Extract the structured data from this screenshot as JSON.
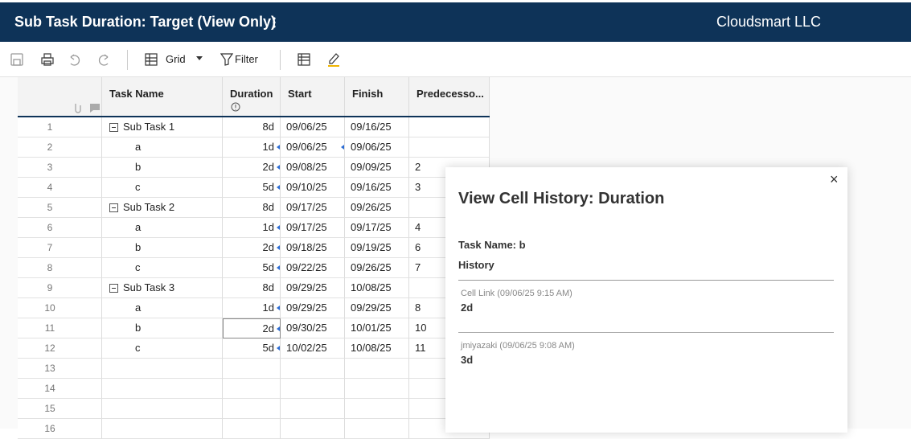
{
  "header": {
    "title": "Sub Task Duration: Target (View Only)",
    "company": "Cloudsmart LLC"
  },
  "toolbar": {
    "view": "Grid",
    "filter": "Filter"
  },
  "table": {
    "columns": [
      "Task Name",
      "Duration",
      "Start",
      "Finish",
      "Predecesso..."
    ],
    "rows": [
      {
        "num": "1",
        "task": "Sub Task 1",
        "duration": "8d",
        "start": "09/06/25",
        "finish": "09/16/25",
        "pred": "",
        "children": [
          {
            "num": "2",
            "task": "a",
            "duration": "1d",
            "start": "09/06/25",
            "finish": "09/06/25",
            "pred": ""
          },
          {
            "num": "3",
            "task": "b",
            "duration": "2d",
            "start": "09/08/25",
            "finish": "09/09/25",
            "pred": "2"
          },
          {
            "num": "4",
            "task": "c",
            "duration": "5d",
            "start": "09/10/25",
            "finish": "09/16/25",
            "pred": "3"
          }
        ]
      },
      {
        "num": "5",
        "task": "Sub Task 2",
        "duration": "8d",
        "start": "09/17/25",
        "finish": "09/26/25",
        "pred": "",
        "children": [
          {
            "num": "6",
            "task": "a",
            "duration": "1d",
            "start": "09/17/25",
            "finish": "09/17/25",
            "pred": "4"
          },
          {
            "num": "7",
            "task": "b",
            "duration": "2d",
            "start": "09/18/25",
            "finish": "09/19/25",
            "pred": "6"
          },
          {
            "num": "8",
            "task": "c",
            "duration": "5d",
            "start": "09/22/25",
            "finish": "09/26/25",
            "pred": "7"
          }
        ]
      },
      {
        "num": "9",
        "task": "Sub Task 3",
        "duration": "8d",
        "start": "09/29/25",
        "finish": "10/08/25",
        "pred": "",
        "children": [
          {
            "num": "10",
            "task": "a",
            "duration": "1d",
            "start": "09/29/25",
            "finish": "09/29/25",
            "pred": "8"
          },
          {
            "num": "11",
            "task": "b",
            "duration": "2d",
            "start": "09/30/25",
            "finish": "10/01/25",
            "pred": "10"
          },
          {
            "num": "12",
            "task": "c",
            "duration": "5d",
            "start": "10/02/25",
            "finish": "10/08/25",
            "pred": "11"
          }
        ]
      }
    ],
    "empty_rows": [
      "13",
      "14",
      "15",
      "16"
    ]
  },
  "panel": {
    "title": "View Cell History: Duration",
    "task_label": "Task Name: b",
    "history_label": "History",
    "entries": [
      {
        "meta": "Cell Link (09/06/25 9:15 AM)",
        "value": "2d"
      },
      {
        "meta": "jmiyazaki (09/06/25 9:08 AM)",
        "value": "3d"
      }
    ]
  }
}
